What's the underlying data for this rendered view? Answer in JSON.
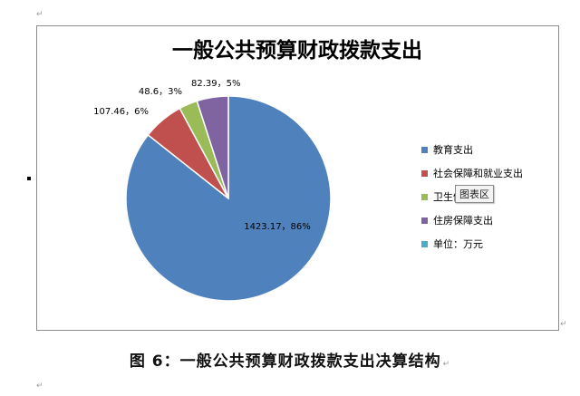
{
  "document": {
    "caption": "图 6：一般公共预算财政拨款支出决算结构",
    "paragraph_mark": "↵",
    "tooltip": "图表区"
  },
  "colors": {
    "series": [
      "#4f81bd",
      "#c0504d",
      "#9bbb59",
      "#8064a2",
      "#4bacc6"
    ],
    "slice_border": "#ffffff",
    "frame_border": "#8c8c8c",
    "text": "#000000"
  },
  "chart_data": {
    "type": "pie",
    "title": "一般公共预算财政拨款支出",
    "categories": [
      "教育支出",
      "社会保障和就业支出",
      "卫生健康支出",
      "住房保障支出"
    ],
    "values": [
      1423.17,
      107.46,
      48.6,
      82.39
    ],
    "percent_labels": [
      "86%",
      "6%",
      "3%",
      "5%"
    ],
    "data_labels": [
      "1423.17，86%",
      "107.46，6%",
      "48.6，3%",
      "82.39，5%"
    ],
    "legend": {
      "placement": "right",
      "entries": [
        "教育支出",
        "社会保障和就业支出",
        "卫生健康支出",
        "住房保障支出",
        "单位：万元"
      ]
    },
    "start_angle_deg": 0,
    "direction": "clockwise"
  }
}
